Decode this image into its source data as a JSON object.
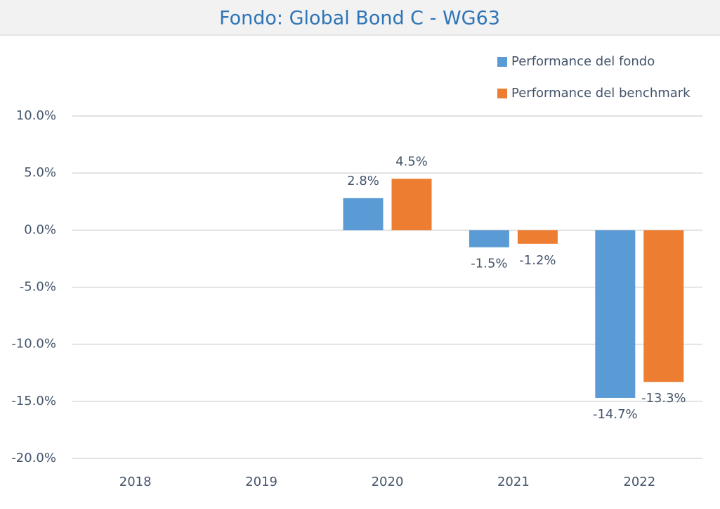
{
  "chart_data": {
    "type": "bar",
    "title": "Fondo: Global Bond C - WG63",
    "categories": [
      "2018",
      "2019",
      "2020",
      "2021",
      "2022"
    ],
    "series": [
      {
        "name": "Performance del fondo",
        "color": "#5b9bd5",
        "values": [
          null,
          null,
          2.8,
          -1.5,
          -14.7
        ],
        "value_labels": [
          null,
          null,
          "2.8%",
          "-1.5%",
          "-14.7%"
        ]
      },
      {
        "name": "Performance del benchmark",
        "color": "#ed7d31",
        "values": [
          null,
          null,
          4.5,
          -1.2,
          -13.3
        ],
        "value_labels": [
          null,
          null,
          "4.5%",
          "-1.2%",
          "-13.3%"
        ]
      }
    ],
    "ylim": [
      -20,
      10
    ],
    "yticks": [
      {
        "value": -20,
        "label": "-20.0%"
      },
      {
        "value": -15,
        "label": "-15.0%"
      },
      {
        "value": -10,
        "label": "-10.0%"
      },
      {
        "value": -5,
        "label": "-5.0%"
      },
      {
        "value": 0,
        "label": "0.0%"
      },
      {
        "value": 5,
        "label": "5.0%"
      },
      {
        "value": 10,
        "label": "10.0%"
      }
    ],
    "grid": true,
    "legend": "top-right"
  }
}
